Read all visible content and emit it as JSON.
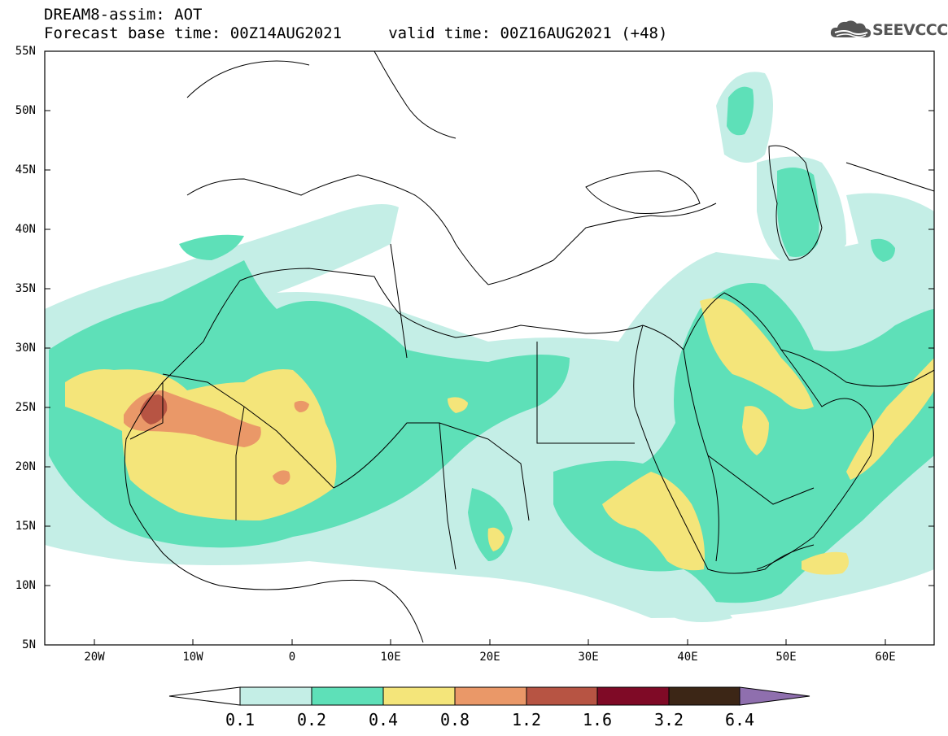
{
  "title": {
    "line1": "DREAM8-assim: AOT",
    "line2": "Forecast base time: 00Z14AUG2021     valid time: 00Z16AUG2021 (+48)"
  },
  "logo": {
    "text": "SEEVCCC",
    "icon": "cloud-icon"
  },
  "axes": {
    "lat_labels": [
      "55N",
      "50N",
      "45N",
      "40N",
      "35N",
      "30N",
      "25N",
      "20N",
      "15N",
      "10N",
      "5N"
    ],
    "lon_labels": [
      "20W",
      "10W",
      "0",
      "10E",
      "20E",
      "30E",
      "40E",
      "50E",
      "60E"
    ],
    "lat_range": [
      5,
      55
    ],
    "lon_range": [
      -25,
      65
    ]
  },
  "colorbar": {
    "labels": [
      "0.1",
      "0.2",
      "0.4",
      "0.8",
      "1.2",
      "1.6",
      "3.2",
      "6.4"
    ],
    "colors": [
      "#ffffff",
      "#c4eee6",
      "#5ee0b8",
      "#f4e57a",
      "#ea9868",
      "#b75443",
      "#7f0a26",
      "#3c2616",
      "#8f6fae"
    ]
  },
  "chart_data": {
    "type": "heatmap",
    "variable": "AOT",
    "levels": [
      0.1,
      0.2,
      0.4,
      0.8,
      1.2,
      1.6,
      3.2,
      6.4
    ],
    "x_range": [
      -25,
      65
    ],
    "y_range": [
      5,
      55
    ],
    "colors": [
      "#c4eee6",
      "#5ee0b8",
      "#f4e57a",
      "#ea9868",
      "#b75443"
    ]
  }
}
